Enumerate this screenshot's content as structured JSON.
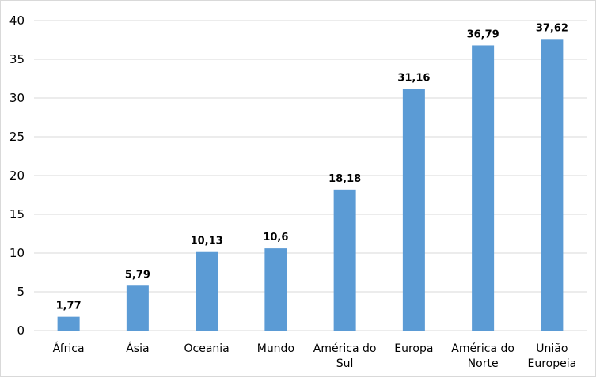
{
  "chart_data": {
    "type": "bar",
    "title": "",
    "xlabel": "",
    "ylabel": "",
    "categories": [
      [
        "África"
      ],
      [
        "Ásia"
      ],
      [
        "Oceania"
      ],
      [
        "Mundo"
      ],
      [
        "América do",
        "Sul"
      ],
      [
        "Europa"
      ],
      [
        "América do",
        "Norte"
      ],
      [
        "União",
        "Europeia"
      ]
    ],
    "values": [
      1.77,
      5.79,
      10.13,
      10.6,
      18.18,
      31.16,
      36.79,
      37.62
    ],
    "data_labels": [
      "1,77",
      "5,79",
      "10,13",
      "10,6",
      "18,18",
      "31,16",
      "36,79",
      "37,62"
    ],
    "yticks": [
      0,
      5,
      10,
      15,
      20,
      25,
      30,
      35,
      40
    ],
    "ylim": [
      0,
      40
    ],
    "grid": true,
    "legend": "none",
    "colors": {
      "bar": "#5b9bd5",
      "grid": "#d9d9d9",
      "text": "#000000"
    }
  }
}
